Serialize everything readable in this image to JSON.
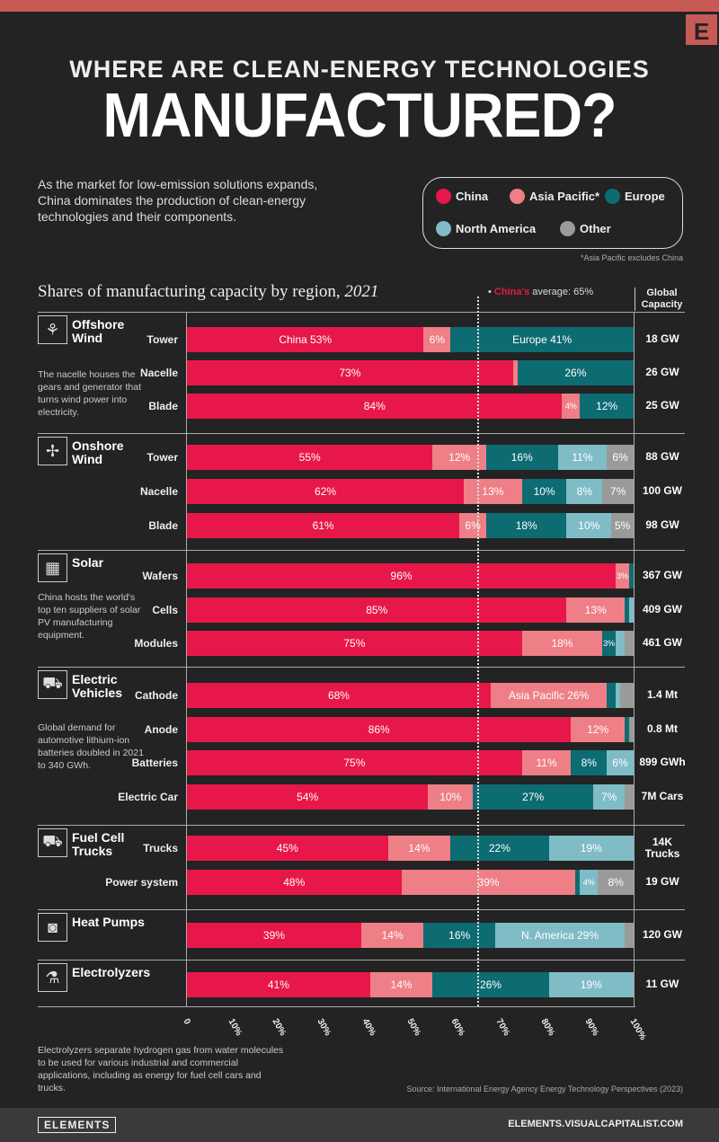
{
  "header": {
    "kicker": "WHERE ARE CLEAN-ENERGY TECHNOLOGIES",
    "title": "MANUFACTURED?",
    "logo": "E",
    "intro": "As the market for low-emission solutions expands, China dominates the production of clean-energy technologies and their components."
  },
  "legend": {
    "items": [
      {
        "label": "China",
        "color": "#e8174a"
      },
      {
        "label": "Asia Pacific*",
        "color": "#ee7f86"
      },
      {
        "label": "Europe",
        "color": "#0d6b72"
      },
      {
        "label": "North America",
        "color": "#7fbcc6"
      },
      {
        "label": "Other",
        "color": "#9a9a9a"
      }
    ],
    "note": "*Asia Pacific excludes China"
  },
  "chart_data": {
    "type": "bar",
    "stacked": true,
    "orientation": "horizontal",
    "title": "Shares of manufacturing capacity by region,",
    "title_year": "2021",
    "series_names": [
      "China",
      "Asia Pacific*",
      "Europe",
      "North America",
      "Other"
    ],
    "average": {
      "prefix": "China's",
      "text": "average: 65%",
      "value": 65
    },
    "capacity_header": "Global Capacity",
    "xlim": [
      0,
      100
    ],
    "xticks": [
      "0",
      "10%",
      "20%",
      "30%",
      "40%",
      "50%",
      "60%",
      "70%",
      "80%",
      "90%",
      "100%"
    ],
    "groups": [
      {
        "name": "Offshore Wind",
        "icon": "offshore-wind-turbine",
        "note": "The nacelle houses the gears and generator that turns wind power into electricity.",
        "rows": [
          {
            "label": "Tower",
            "values": [
              53,
              6,
              41,
              0,
              0
            ],
            "labels": [
              "China  53%",
              "6%",
              "Europe 41%",
              "",
              ""
            ],
            "capacity": "18 GW"
          },
          {
            "label": "Nacelle",
            "values": [
              73,
              1,
              26,
              0,
              0
            ],
            "labels": [
              "73%",
              "",
              "26%",
              "",
              ""
            ],
            "capacity": "26 GW"
          },
          {
            "label": "Blade",
            "values": [
              84,
              4,
              12,
              0,
              0
            ],
            "labels": [
              "84%",
              "4%",
              "12%",
              "",
              ""
            ],
            "capacity": "25 GW"
          }
        ]
      },
      {
        "name": "Onshore Wind",
        "icon": "onshore-wind-turbine",
        "note": "",
        "rows": [
          {
            "label": "Tower",
            "values": [
              55,
              12,
              16,
              11,
              6
            ],
            "labels": [
              "55%",
              "12%",
              "16%",
              "11%",
              "6%"
            ],
            "capacity": "88 GW"
          },
          {
            "label": "Nacelle",
            "values": [
              62,
              13,
              10,
              8,
              7
            ],
            "labels": [
              "62%",
              "13%",
              "10%",
              "8%",
              "7%"
            ],
            "capacity": "100 GW"
          },
          {
            "label": "Blade",
            "values": [
              61,
              6,
              18,
              10,
              5
            ],
            "labels": [
              "61%",
              "6%",
              "18%",
              "10%",
              "5%"
            ],
            "capacity": "98 GW"
          }
        ]
      },
      {
        "name": "Solar",
        "icon": "solar-panel",
        "note": "China hosts the world's top ten suppliers of solar PV manufacturing equipment.",
        "rows": [
          {
            "label": "Wafers",
            "values": [
              96,
              3,
              1,
              0,
              0
            ],
            "labels": [
              "96%",
              "3%",
              "",
              "",
              ""
            ],
            "capacity": "367 GW"
          },
          {
            "label": "Cells",
            "values": [
              85,
              13,
              1,
              1,
              0
            ],
            "labels": [
              "85%",
              "13%",
              "",
              "",
              ""
            ],
            "capacity": "409 GW"
          },
          {
            "label": "Modules",
            "values": [
              75,
              18,
              3,
              2,
              2
            ],
            "labels": [
              "75%",
              "18%",
              "3%",
              "",
              ""
            ],
            "capacity": "461 GW"
          }
        ]
      },
      {
        "name": "Electric Vehicles",
        "icon": "electric-vehicle",
        "note": "Global demand for automotive lithium-ion batteries doubled in 2021 to 340 GWh.",
        "rows": [
          {
            "label": "Cathode",
            "values": [
              68,
              26,
              2,
              1,
              3
            ],
            "labels": [
              "68%",
              "Asia Pacific  26%",
              "",
              "",
              ""
            ],
            "capacity": "1.4 Mt"
          },
          {
            "label": "Anode",
            "values": [
              86,
              12,
              1,
              0,
              1
            ],
            "labels": [
              "86%",
              "12%",
              "",
              "",
              ""
            ],
            "capacity": "0.8 Mt"
          },
          {
            "label": "Batteries",
            "values": [
              75,
              11,
              8,
              6,
              0
            ],
            "labels": [
              "75%",
              "11%",
              "8%",
              "6%",
              ""
            ],
            "capacity": "899 GWh"
          },
          {
            "label": "Electric Car",
            "values": [
              54,
              10,
              27,
              7,
              2
            ],
            "labels": [
              "54%",
              "10%",
              "27%",
              "7%",
              ""
            ],
            "capacity": "7M Cars"
          }
        ]
      },
      {
        "name": "Fuel Cell Trucks",
        "icon": "truck",
        "note": "",
        "rows": [
          {
            "label": "Trucks",
            "values": [
              45,
              14,
              22,
              19,
              0
            ],
            "labels": [
              "45%",
              "14%",
              "22%",
              "19%",
              ""
            ],
            "capacity": "14K Trucks"
          },
          {
            "label": "Power system",
            "values": [
              48,
              39,
              1,
              4,
              8
            ],
            "labels": [
              "48%",
              "39%",
              "",
              "4%",
              "8%"
            ],
            "capacity": "19 GW"
          }
        ]
      },
      {
        "name": "Heat Pumps",
        "icon": "heat-pump",
        "note": "",
        "rows": [
          {
            "label": "",
            "values": [
              39,
              14,
              16,
              29,
              2
            ],
            "labels": [
              "39%",
              "14%",
              "16%",
              "N. America 29%",
              ""
            ],
            "capacity": "120 GW"
          }
        ]
      },
      {
        "name": "Electrolyzers",
        "icon": "electrolyzer",
        "note": "Electrolyzers separate hydrogen gas from water molecules to be used for various industrial and commercial applications, including as energy for fuel cell cars and trucks.",
        "rows": [
          {
            "label": "",
            "values": [
              41,
              14,
              26,
              19,
              0
            ],
            "labels": [
              "41%",
              "14%",
              "26%",
              "19%",
              ""
            ],
            "capacity": "11 GW"
          }
        ]
      }
    ]
  },
  "footer": {
    "source": "Source: International Energy Agency Energy Technology Perspectives (2023)",
    "brand": "ELEMENTS",
    "url": "ELEMENTS.VISUALCAPITALIST.COM"
  }
}
